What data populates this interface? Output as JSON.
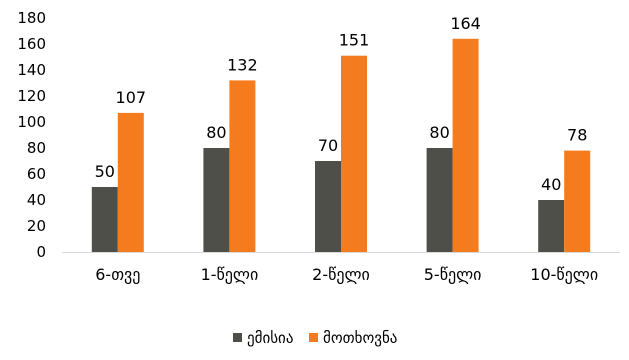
{
  "chart_data": {
    "type": "bar",
    "categories": [
      "6-თვე",
      "1-წელი",
      "2-წელი",
      "5-წელი",
      "10-წელი"
    ],
    "series": [
      {
        "name": "ემისია",
        "values": [
          50,
          80,
          70,
          80,
          40
        ],
        "color": "#4f4f49"
      },
      {
        "name": "მოთხოვნა",
        "values": [
          107,
          132,
          151,
          164,
          78
        ],
        "color": "#f47c1e"
      }
    ],
    "ylim": [
      0,
      180
    ],
    "yticks": [
      0,
      20,
      40,
      60,
      80,
      100,
      120,
      140,
      160,
      180
    ],
    "grid": false,
    "legend": "bottom",
    "data_labels": true
  }
}
